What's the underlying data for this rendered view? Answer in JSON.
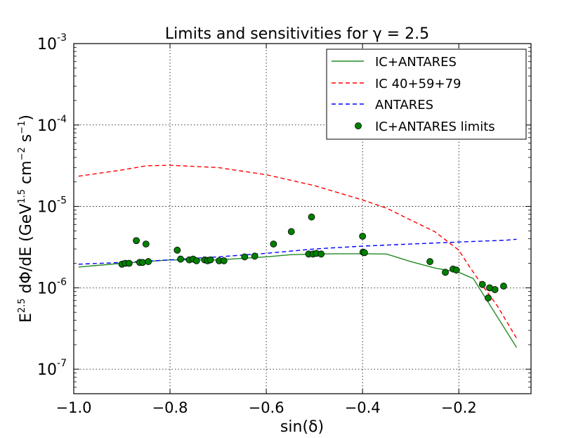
{
  "chart_data": {
    "type": "line",
    "title": "Limits and sensitivities for γ = 2.5",
    "xlabel": "sin(δ)",
    "ylabel": {
      "base": "E",
      "base_sup": "2.5",
      "mid": " dΦ/dE (GeV",
      "mid_sup": "1.5",
      "cm": " cm",
      "cm_sup": "−2",
      "s": " s",
      "s_sup": "−1",
      "close": ")"
    },
    "xlim": [
      -1.0,
      -0.05
    ],
    "ylim": [
      5e-08,
      0.001
    ],
    "yscale": "log",
    "grid": true,
    "legend_position": "top-right",
    "x_ticks": [
      {
        "value": -1.0,
        "label": "−1.0"
      },
      {
        "value": -0.8,
        "label": "−0.8"
      },
      {
        "value": -0.6,
        "label": "−0.6"
      },
      {
        "value": -0.4,
        "label": "−0.4"
      },
      {
        "value": -0.2,
        "label": "−0.2"
      }
    ],
    "y_ticks": [
      {
        "value": 1e-07,
        "base": "10",
        "exp": "-7"
      },
      {
        "value": 1e-06,
        "base": "10",
        "exp": "-6"
      },
      {
        "value": 1e-05,
        "base": "10",
        "exp": "-5"
      },
      {
        "value": 0.0001,
        "base": "10",
        "exp": "-4"
      },
      {
        "value": 0.001,
        "base": "10",
        "exp": "-3"
      }
    ],
    "series": [
      {
        "name": "IC+ANTARES",
        "style": "solid",
        "color": "#228b22",
        "x": [
          -0.99,
          -0.9,
          -0.8,
          -0.7,
          -0.6,
          -0.55,
          -0.5,
          -0.45,
          -0.4,
          -0.35,
          -0.3,
          -0.25,
          -0.2,
          -0.17,
          -0.08
        ],
        "y": [
          1.8e-06,
          2e-06,
          2.2e-06,
          2.2e-06,
          2.4e-06,
          2.55e-06,
          2.6e-06,
          2.62e-06,
          2.62e-06,
          2.6e-06,
          2.1e-06,
          1.75e-06,
          1.55e-06,
          1.3e-06,
          1.85e-07
        ]
      },
      {
        "name": "IC 40+59+79",
        "style": "dashed",
        "color": "#ff0000",
        "x": [
          -0.99,
          -0.9,
          -0.85,
          -0.8,
          -0.7,
          -0.6,
          -0.5,
          -0.4,
          -0.35,
          -0.3,
          -0.25,
          -0.2,
          -0.18,
          -0.15,
          -0.12,
          -0.08
        ],
        "y": [
          2.35e-05,
          2.8e-05,
          3.15e-05,
          3.2e-05,
          3e-05,
          2.45e-05,
          1.8e-05,
          1.2e-05,
          9.5e-06,
          6.8e-06,
          4.9e-06,
          2.9e-06,
          1.9e-06,
          1.05e-06,
          6e-07,
          2.4e-07
        ]
      },
      {
        "name": "ANTARES",
        "style": "dashed",
        "color": "#0000ff",
        "x": [
          -0.99,
          -0.9,
          -0.8,
          -0.7,
          -0.6,
          -0.5,
          -0.4,
          -0.3,
          -0.2,
          -0.1,
          -0.08
        ],
        "y": [
          1.95e-06,
          2.05e-06,
          2.2e-06,
          2.4e-06,
          2.65e-06,
          3e-06,
          3.25e-06,
          3.45e-06,
          3.65e-06,
          3.85e-06,
          3.95e-06
        ]
      }
    ],
    "scatter": {
      "name": "IC+ANTARES limits",
      "color": "#008000",
      "points": [
        [
          -0.9,
          1.95e-06
        ],
        [
          -0.893,
          2e-06
        ],
        [
          -0.885,
          2e-06
        ],
        [
          -0.87,
          3.8e-06
        ],
        [
          -0.863,
          2.05e-06
        ],
        [
          -0.857,
          2.05e-06
        ],
        [
          -0.85,
          3.45e-06
        ],
        [
          -0.845,
          2.1e-06
        ],
        [
          -0.785,
          2.9e-06
        ],
        [
          -0.778,
          2.25e-06
        ],
        [
          -0.76,
          2.2e-06
        ],
        [
          -0.752,
          2.25e-06
        ],
        [
          -0.745,
          2.15e-06
        ],
        [
          -0.728,
          2.2e-06
        ],
        [
          -0.722,
          2.15e-06
        ],
        [
          -0.716,
          2.2e-06
        ],
        [
          -0.698,
          2.15e-06
        ],
        [
          -0.688,
          2.15e-06
        ],
        [
          -0.645,
          2.4e-06
        ],
        [
          -0.624,
          2.45e-06
        ],
        [
          -0.585,
          3.45e-06
        ],
        [
          -0.548,
          4.9e-06
        ],
        [
          -0.512,
          2.6e-06
        ],
        [
          -0.506,
          7.4e-06
        ],
        [
          -0.503,
          2.6e-06
        ],
        [
          -0.496,
          2.65e-06
        ],
        [
          -0.486,
          2.6e-06
        ],
        [
          -0.4,
          4.3e-06
        ],
        [
          -0.399,
          2.75e-06
        ],
        [
          -0.396,
          2.7e-06
        ],
        [
          -0.26,
          2.1e-06
        ],
        [
          -0.228,
          1.55e-06
        ],
        [
          -0.212,
          1.7e-06
        ],
        [
          -0.205,
          1.65e-06
        ],
        [
          -0.151,
          1.1e-06
        ],
        [
          -0.139,
          7.5e-07
        ],
        [
          -0.136,
          1e-06
        ],
        [
          -0.125,
          9.5e-07
        ],
        [
          -0.107,
          1.05e-06
        ]
      ]
    }
  }
}
